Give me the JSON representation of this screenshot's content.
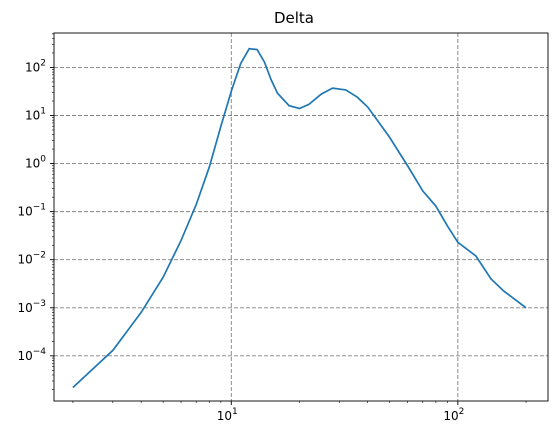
{
  "chart_data": {
    "type": "line",
    "title": "Delta",
    "xlabel": "",
    "ylabel": "",
    "x_scale": "log",
    "y_scale": "log",
    "xlim": [
      1.65,
      250
    ],
    "ylim": [
      1.15e-05,
      520
    ],
    "grid": true,
    "line_color": "#1f77b4",
    "grid_color": "#808080",
    "x_ticks": [
      {
        "value": 10,
        "base": "10",
        "exp": "1"
      },
      {
        "value": 100,
        "base": "10",
        "exp": "2"
      }
    ],
    "y_ticks": [
      {
        "value": 0.0001,
        "base": "10",
        "exp": "−4"
      },
      {
        "value": 0.001,
        "base": "10",
        "exp": "−3"
      },
      {
        "value": 0.01,
        "base": "10",
        "exp": "−2"
      },
      {
        "value": 0.1,
        "base": "10",
        "exp": "−1"
      },
      {
        "value": 1,
        "base": "10",
        "exp": "0"
      },
      {
        "value": 10,
        "base": "10",
        "exp": "1"
      },
      {
        "value": 100,
        "base": "10",
        "exp": "2"
      }
    ],
    "x": [
      2,
      3,
      4,
      5,
      6,
      7,
      8,
      9,
      10,
      11,
      12,
      13,
      14,
      15,
      16,
      18,
      20,
      22,
      25,
      28,
      32,
      36,
      40,
      45,
      50,
      60,
      70,
      80,
      90,
      100,
      120,
      140,
      160,
      200
    ],
    "y": [
      2.2e-05,
      0.00013,
      0.0008,
      0.0043,
      0.025,
      0.14,
      0.85,
      6,
      32,
      120,
      245,
      235,
      130,
      55,
      29,
      16,
      14,
      17,
      28,
      37,
      34,
      24,
      15,
      7,
      3.5,
      0.9,
      0.27,
      0.13,
      0.05,
      0.023,
      0.012,
      0.004,
      0.0022,
      0.001
    ]
  }
}
